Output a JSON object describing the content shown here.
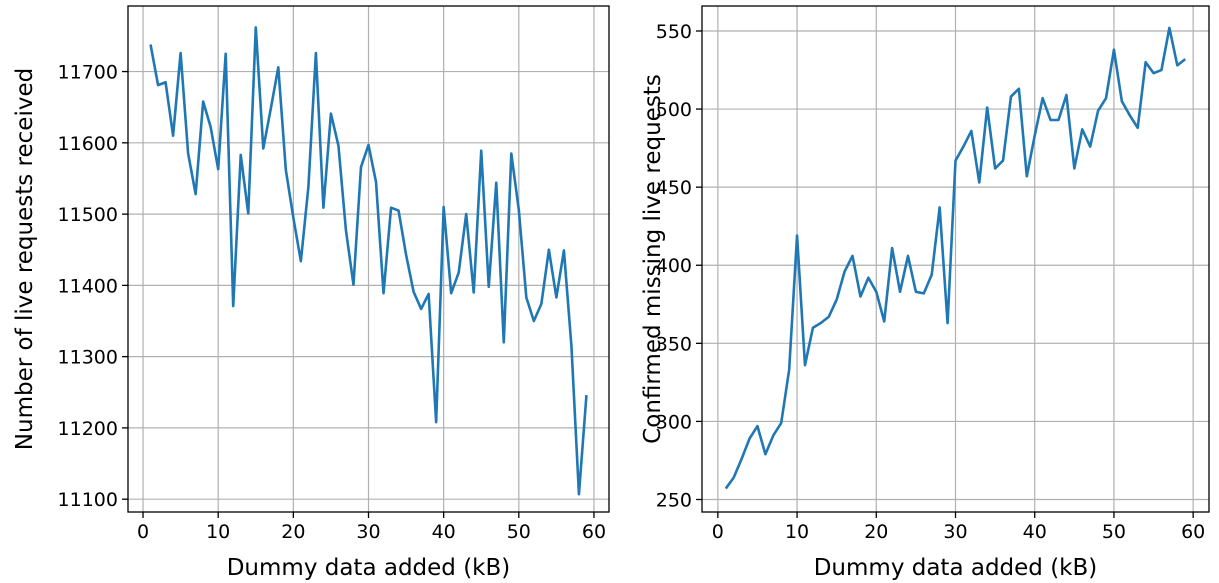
{
  "chart_data": [
    {
      "type": "line",
      "xlabel": "Dummy data added (kB)",
      "ylabel": "Number of live requests received",
      "xlim": [
        -2,
        62
      ],
      "ylim": [
        11082,
        11792
      ],
      "xticks": [
        0,
        10,
        20,
        30,
        40,
        50,
        60
      ],
      "yticks": [
        11100,
        11200,
        11300,
        11400,
        11500,
        11600,
        11700
      ],
      "grid": true,
      "color": "#1f77b4",
      "series": [
        {
          "x": [
            1,
            2,
            3,
            4,
            5,
            6,
            7,
            8,
            9,
            10,
            11,
            12,
            13,
            14,
            15,
            16,
            17,
            18,
            19,
            20,
            21,
            22,
            23,
            24,
            25,
            26,
            27,
            28,
            29,
            30,
            31,
            32,
            33,
            34,
            35,
            36,
            37,
            38,
            39,
            40,
            41,
            42,
            43,
            44,
            45,
            46,
            47,
            48,
            49,
            50,
            51,
            52,
            53,
            54,
            55,
            56,
            57,
            58,
            59
          ],
          "values": [
            11738,
            11681,
            11685,
            11610,
            11726,
            11585,
            11528,
            11658,
            11622,
            11563,
            11725,
            11371,
            11583,
            11501,
            11762,
            11592,
            11648,
            11706,
            11562,
            11495,
            11434,
            11538,
            11726,
            11509,
            11641,
            11596,
            11477,
            11401,
            11566,
            11597,
            11545,
            11389,
            11509,
            11505,
            11443,
            11391,
            11367,
            11388,
            11208,
            11510,
            11389,
            11418,
            11500,
            11390,
            11589,
            11398,
            11544,
            11320,
            11585,
            11506,
            11383,
            11350,
            11374,
            11450,
            11383,
            11449,
            11315,
            11107,
            11246
          ]
        }
      ]
    },
    {
      "type": "line",
      "xlabel": "Dummy data added (kB)",
      "ylabel": "Confirmed missing live requests",
      "xlim": [
        -2,
        62
      ],
      "ylim": [
        242,
        566
      ],
      "xticks": [
        0,
        10,
        20,
        30,
        40,
        50,
        60
      ],
      "yticks": [
        250,
        300,
        350,
        400,
        450,
        500,
        550
      ],
      "grid": true,
      "color": "#1f77b4",
      "series": [
        {
          "x": [
            1,
            2,
            3,
            4,
            5,
            6,
            7,
            8,
            9,
            10,
            11,
            12,
            13,
            14,
            15,
            16,
            17,
            18,
            19,
            20,
            21,
            22,
            23,
            24,
            25,
            26,
            27,
            28,
            29,
            30,
            31,
            32,
            33,
            34,
            35,
            36,
            37,
            38,
            39,
            40,
            41,
            42,
            43,
            44,
            45,
            46,
            47,
            48,
            49,
            50,
            51,
            52,
            53,
            54,
            55,
            56,
            57,
            58,
            59
          ],
          "values": [
            257,
            264,
            276,
            289,
            297,
            279,
            291,
            299,
            333,
            419,
            336,
            360,
            363,
            367,
            378,
            396,
            406,
            380,
            392,
            383,
            364,
            411,
            383,
            406,
            383,
            382,
            394,
            437,
            363,
            467,
            476,
            486,
            453,
            501,
            462,
            467,
            508,
            513,
            457,
            483,
            507,
            493,
            493,
            509,
            462,
            487,
            476,
            499,
            507,
            538,
            505,
            496,
            488,
            530,
            523,
            525,
            552,
            528,
            532
          ]
        }
      ]
    }
  ]
}
